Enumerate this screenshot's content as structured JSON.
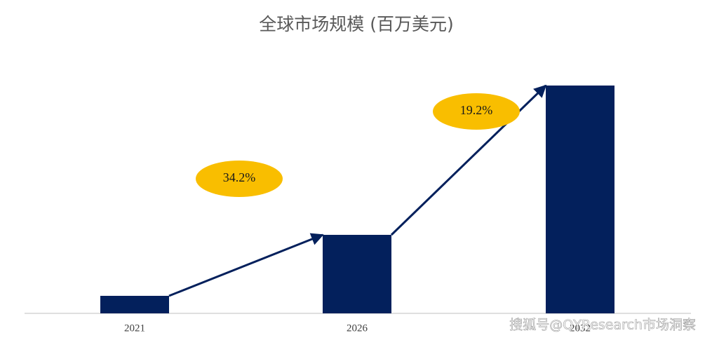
{
  "chart_data": {
    "type": "bar",
    "title": "全球市场规模 (百万美元)",
    "categories": [
      "2021",
      "2026",
      "2032"
    ],
    "values": [
      25,
      112,
      325
    ],
    "color": "#03205C",
    "annotations": [
      {
        "text": "34.2%",
        "color": "#F9BE00"
      },
      {
        "text": "19.2%",
        "color": "#F9BE00"
      }
    ],
    "arrow_color": "#03205C"
  },
  "watermark": "搜狐号@QYResearch市场洞察"
}
